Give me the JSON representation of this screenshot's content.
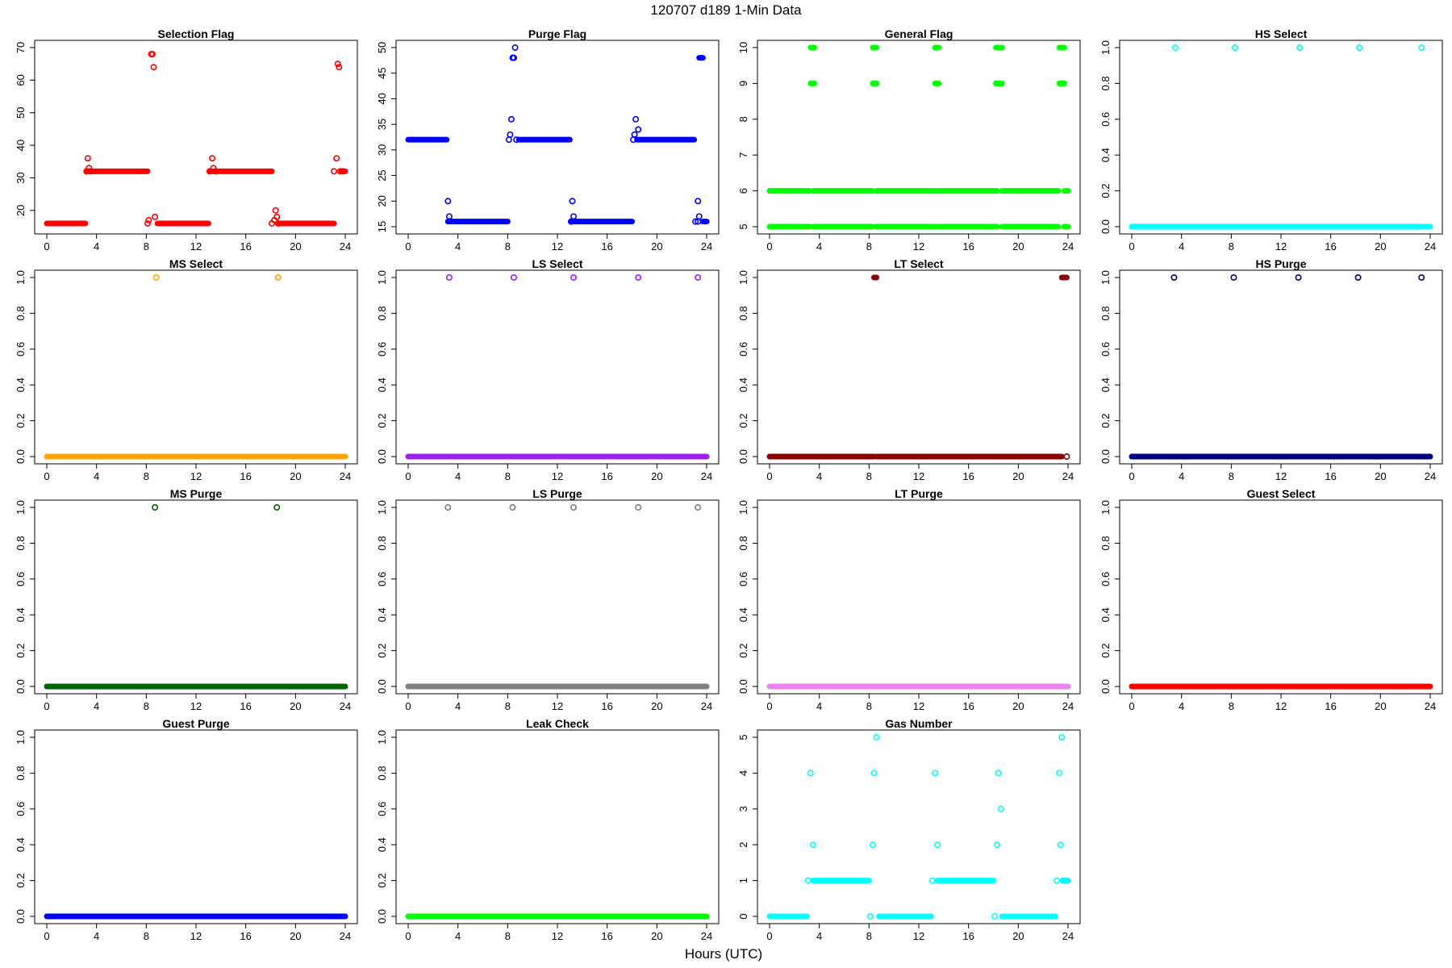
{
  "figure": {
    "title": "120707    d189    1-Min Data",
    "xlabel": "Hours (UTC)"
  },
  "chart_data": [
    {
      "type": "scatter",
      "title": "Selection Flag",
      "color": "#ff0000",
      "xlim": [
        0,
        24
      ],
      "ylim": [
        15,
        70
      ],
      "xticks": [
        0,
        4,
        8,
        12,
        16,
        20,
        24
      ],
      "yticks": [
        20,
        30,
        40,
        50,
        60,
        70
      ],
      "segments": [
        {
          "y": 16,
          "from": 0.0,
          "to": 3.1
        },
        {
          "y": 32,
          "from": 3.2,
          "to": 8.1
        },
        {
          "y": 16,
          "from": 8.9,
          "to": 13.0
        },
        {
          "y": 32,
          "from": 13.1,
          "to": 18.1
        },
        {
          "y": 16,
          "from": 18.6,
          "to": 23.1
        },
        {
          "y": 32,
          "from": 23.7,
          "to": 24.0
        }
      ],
      "points": [
        [
          3.2,
          32
        ],
        [
          3.3,
          36
        ],
        [
          3.4,
          33
        ],
        [
          3.5,
          32
        ],
        [
          8.1,
          16
        ],
        [
          8.2,
          17
        ],
        [
          8.4,
          68
        ],
        [
          8.5,
          68
        ],
        [
          8.6,
          64
        ],
        [
          8.7,
          18
        ],
        [
          13.1,
          32
        ],
        [
          13.3,
          36
        ],
        [
          13.4,
          33
        ],
        [
          13.6,
          32
        ],
        [
          18.1,
          16
        ],
        [
          18.3,
          17
        ],
        [
          18.4,
          20
        ],
        [
          18.5,
          18
        ],
        [
          18.6,
          16
        ],
        [
          23.1,
          32
        ],
        [
          23.3,
          36
        ],
        [
          23.4,
          65
        ],
        [
          23.5,
          64
        ],
        [
          23.6,
          32
        ],
        [
          23.8,
          32
        ]
      ]
    },
    {
      "type": "scatter",
      "title": "Purge Flag",
      "color": "#0000ff",
      "xlim": [
        0,
        24
      ],
      "ylim": [
        15,
        50
      ],
      "xticks": [
        0,
        4,
        8,
        12,
        16,
        20,
        24
      ],
      "yticks": [
        15,
        20,
        25,
        30,
        35,
        40,
        45,
        50
      ],
      "segments": [
        {
          "y": 32,
          "from": 0.0,
          "to": 3.1
        },
        {
          "y": 16,
          "from": 3.2,
          "to": 8.0
        },
        {
          "y": 32,
          "from": 8.9,
          "to": 13.0
        },
        {
          "y": 16,
          "from": 13.1,
          "to": 18.0
        },
        {
          "y": 32,
          "from": 18.4,
          "to": 23.0
        },
        {
          "y": 48,
          "from": 23.4,
          "to": 23.7
        },
        {
          "y": 16,
          "from": 23.7,
          "to": 24.0
        }
      ],
      "points": [
        [
          3.2,
          20
        ],
        [
          3.3,
          17
        ],
        [
          8.1,
          32
        ],
        [
          8.2,
          33
        ],
        [
          8.3,
          36
        ],
        [
          8.4,
          48
        ],
        [
          8.5,
          48
        ],
        [
          8.6,
          50
        ],
        [
          8.7,
          32
        ],
        [
          13.1,
          16
        ],
        [
          13.2,
          20
        ],
        [
          13.3,
          17
        ],
        [
          18.1,
          32
        ],
        [
          18.2,
          33
        ],
        [
          18.3,
          36
        ],
        [
          18.5,
          34
        ],
        [
          23.1,
          16
        ],
        [
          23.3,
          20
        ],
        [
          23.4,
          17
        ],
        [
          23.3,
          16
        ]
      ]
    },
    {
      "type": "scatter",
      "title": "General Flag",
      "color": "#00ff00",
      "xlim": [
        0,
        24
      ],
      "ylim": [
        5,
        10
      ],
      "xticks": [
        0,
        4,
        8,
        12,
        16,
        20,
        24
      ],
      "yticks": [
        5,
        6,
        7,
        8,
        9,
        10
      ],
      "segments": [
        {
          "y": 6,
          "from": 0.0,
          "to": 3.2
        },
        {
          "y": 5,
          "from": 0.0,
          "to": 3.2
        },
        {
          "y": 6,
          "from": 3.5,
          "to": 8.3
        },
        {
          "y": 5,
          "from": 3.5,
          "to": 8.3
        },
        {
          "y": 6,
          "from": 8.6,
          "to": 13.3
        },
        {
          "y": 5,
          "from": 8.6,
          "to": 13.3
        },
        {
          "y": 6,
          "from": 13.5,
          "to": 18.3
        },
        {
          "y": 5,
          "from": 13.5,
          "to": 18.3
        },
        {
          "y": 6,
          "from": 18.7,
          "to": 23.2
        },
        {
          "y": 5,
          "from": 18.7,
          "to": 23.2
        },
        {
          "y": 6,
          "from": 23.7,
          "to": 24.0
        },
        {
          "y": 5,
          "from": 23.7,
          "to": 24.0
        },
        {
          "y": 10,
          "from": 3.3,
          "to": 3.6
        },
        {
          "y": 9,
          "from": 3.3,
          "to": 3.6
        },
        {
          "y": 10,
          "from": 8.3,
          "to": 8.6
        },
        {
          "y": 9,
          "from": 8.3,
          "to": 8.6
        },
        {
          "y": 10,
          "from": 13.3,
          "to": 13.6
        },
        {
          "y": 9,
          "from": 13.3,
          "to": 13.6
        },
        {
          "y": 10,
          "from": 18.2,
          "to": 18.7
        },
        {
          "y": 9,
          "from": 18.2,
          "to": 18.7
        },
        {
          "y": 10,
          "from": 23.3,
          "to": 23.7
        },
        {
          "y": 9,
          "from": 23.3,
          "to": 23.7
        }
      ],
      "points": []
    },
    {
      "type": "scatter",
      "title": "HS Select",
      "color": "#00ffff",
      "xlim": [
        0,
        24
      ],
      "ylim": [
        0,
        1
      ],
      "xticks": [
        0,
        4,
        8,
        12,
        16,
        20,
        24
      ],
      "yticks": [
        0.0,
        0.2,
        0.4,
        0.6,
        0.8,
        1.0
      ],
      "segments": [
        {
          "y": 0,
          "from": 0.0,
          "to": 24.0
        }
      ],
      "points": [
        [
          3.5,
          1
        ],
        [
          8.3,
          1
        ],
        [
          13.5,
          1
        ],
        [
          18.3,
          1
        ],
        [
          23.3,
          1
        ]
      ]
    },
    {
      "type": "scatter",
      "title": "MS Select",
      "color": "#ffa500",
      "xlim": [
        0,
        24
      ],
      "ylim": [
        0,
        1
      ],
      "xticks": [
        0,
        4,
        8,
        12,
        16,
        20,
        24
      ],
      "yticks": [
        0.0,
        0.2,
        0.4,
        0.6,
        0.8,
        1.0
      ],
      "segments": [
        {
          "y": 0,
          "from": 0.0,
          "to": 24.0
        }
      ],
      "points": [
        [
          8.8,
          1
        ],
        [
          18.6,
          1
        ]
      ]
    },
    {
      "type": "scatter",
      "title": "LS Select",
      "color": "#a020f0",
      "xlim": [
        0,
        24
      ],
      "ylim": [
        0,
        1
      ],
      "xticks": [
        0,
        4,
        8,
        12,
        16,
        20,
        24
      ],
      "yticks": [
        0.0,
        0.2,
        0.4,
        0.6,
        0.8,
        1.0
      ],
      "segments": [
        {
          "y": 0,
          "from": 0.0,
          "to": 24.0
        }
      ],
      "points": [
        [
          3.3,
          1
        ],
        [
          8.5,
          1
        ],
        [
          13.3,
          1
        ],
        [
          18.5,
          1
        ],
        [
          23.3,
          1
        ]
      ]
    },
    {
      "type": "scatter",
      "title": "LT Select",
      "color": "#8b0000",
      "xlim": [
        0,
        24
      ],
      "ylim": [
        0,
        1
      ],
      "xticks": [
        0,
        4,
        8,
        12,
        16,
        20,
        24
      ],
      "yticks": [
        0.0,
        0.2,
        0.4,
        0.6,
        0.8,
        1.0
      ],
      "segments": [
        {
          "y": 0,
          "from": 0.0,
          "to": 8.4
        },
        {
          "y": 0,
          "from": 8.6,
          "to": 23.5
        },
        {
          "y": 1,
          "from": 8.4,
          "to": 8.6
        },
        {
          "y": 1,
          "from": 23.5,
          "to": 23.9
        }
      ],
      "points": [
        [
          23.9,
          0
        ]
      ]
    },
    {
      "type": "scatter",
      "title": "HS Purge",
      "color": "#000080",
      "xlim": [
        0,
        24
      ],
      "ylim": [
        0,
        1
      ],
      "xticks": [
        0,
        4,
        8,
        12,
        16,
        20,
        24
      ],
      "yticks": [
        0.0,
        0.2,
        0.4,
        0.6,
        0.8,
        1.0
      ],
      "segments": [
        {
          "y": 0,
          "from": 0.0,
          "to": 24.0
        }
      ],
      "points": [
        [
          3.4,
          1
        ],
        [
          8.2,
          1
        ],
        [
          13.4,
          1
        ],
        [
          18.2,
          1
        ],
        [
          23.3,
          1
        ]
      ]
    },
    {
      "type": "scatter",
      "title": "MS Purge",
      "color": "#006400",
      "xlim": [
        0,
        24
      ],
      "ylim": [
        0,
        1
      ],
      "xticks": [
        0,
        4,
        8,
        12,
        16,
        20,
        24
      ],
      "yticks": [
        0.0,
        0.2,
        0.4,
        0.6,
        0.8,
        1.0
      ],
      "segments": [
        {
          "y": 0,
          "from": 0.0,
          "to": 24.0
        }
      ],
      "points": [
        [
          8.7,
          1
        ],
        [
          18.5,
          1
        ]
      ]
    },
    {
      "type": "scatter",
      "title": "LS Purge",
      "color": "#808080",
      "xlim": [
        0,
        24
      ],
      "ylim": [
        0,
        1
      ],
      "xticks": [
        0,
        4,
        8,
        12,
        16,
        20,
        24
      ],
      "yticks": [
        0.0,
        0.2,
        0.4,
        0.6,
        0.8,
        1.0
      ],
      "segments": [
        {
          "y": 0,
          "from": 0.0,
          "to": 24.0
        }
      ],
      "points": [
        [
          3.2,
          1
        ],
        [
          8.4,
          1
        ],
        [
          13.3,
          1
        ],
        [
          18.5,
          1
        ],
        [
          23.3,
          1
        ]
      ]
    },
    {
      "type": "scatter",
      "title": "LT Purge",
      "color": "#ee82ee",
      "xlim": [
        0,
        24
      ],
      "ylim": [
        0,
        1
      ],
      "xticks": [
        0,
        4,
        8,
        12,
        16,
        20,
        24
      ],
      "yticks": [
        0.0,
        0.2,
        0.4,
        0.6,
        0.8,
        1.0
      ],
      "segments": [
        {
          "y": 0,
          "from": 0.0,
          "to": 24.0
        }
      ],
      "points": []
    },
    {
      "type": "scatter",
      "title": "Guest Select",
      "color": "#ff0000",
      "xlim": [
        0,
        24
      ],
      "ylim": [
        0,
        1
      ],
      "xticks": [
        0,
        4,
        8,
        12,
        16,
        20,
        24
      ],
      "yticks": [
        0.0,
        0.2,
        0.4,
        0.6,
        0.8,
        1.0
      ],
      "segments": [
        {
          "y": 0,
          "from": 0.0,
          "to": 24.0
        }
      ],
      "points": []
    },
    {
      "type": "scatter",
      "title": "Guest Purge",
      "color": "#0000ff",
      "xlim": [
        0,
        24
      ],
      "ylim": [
        0,
        1
      ],
      "xticks": [
        0,
        4,
        8,
        12,
        16,
        20,
        24
      ],
      "yticks": [
        0.0,
        0.2,
        0.4,
        0.6,
        0.8,
        1.0
      ],
      "segments": [
        {
          "y": 0,
          "from": 0.0,
          "to": 24.0
        }
      ],
      "points": []
    },
    {
      "type": "scatter",
      "title": "Leak Check",
      "color": "#00ff00",
      "xlim": [
        0,
        24
      ],
      "ylim": [
        0,
        1
      ],
      "xticks": [
        0,
        4,
        8,
        12,
        16,
        20,
        24
      ],
      "yticks": [
        0.0,
        0.2,
        0.4,
        0.6,
        0.8,
        1.0
      ],
      "segments": [
        {
          "y": 0,
          "from": 0.0,
          "to": 24.0
        }
      ],
      "points": []
    },
    {
      "type": "scatter",
      "title": "Gas Number",
      "color": "#00ffff",
      "xlim": [
        0,
        24
      ],
      "ylim": [
        0,
        5
      ],
      "xticks": [
        0,
        4,
        8,
        12,
        16,
        20,
        24
      ],
      "yticks": [
        0,
        1,
        2,
        3,
        4,
        5
      ],
      "segments": [
        {
          "y": 0,
          "from": 0.0,
          "to": 3.0
        },
        {
          "y": 1,
          "from": 3.5,
          "to": 8.0
        },
        {
          "y": 0,
          "from": 8.8,
          "to": 13.0
        },
        {
          "y": 1,
          "from": 13.5,
          "to": 18.0
        },
        {
          "y": 0,
          "from": 18.7,
          "to": 23.0
        },
        {
          "y": 1,
          "from": 23.6,
          "to": 24.0
        }
      ],
      "points": [
        [
          3.1,
          1
        ],
        [
          3.3,
          4
        ],
        [
          3.5,
          2
        ],
        [
          8.1,
          0
        ],
        [
          8.3,
          2
        ],
        [
          8.4,
          4
        ],
        [
          8.6,
          5
        ],
        [
          13.1,
          1
        ],
        [
          13.3,
          4
        ],
        [
          13.5,
          2
        ],
        [
          18.1,
          0
        ],
        [
          18.3,
          2
        ],
        [
          18.4,
          4
        ],
        [
          18.6,
          3
        ],
        [
          23.1,
          1
        ],
        [
          23.3,
          4
        ],
        [
          23.4,
          2
        ],
        [
          23.5,
          5
        ],
        [
          23.6,
          1
        ]
      ]
    }
  ]
}
